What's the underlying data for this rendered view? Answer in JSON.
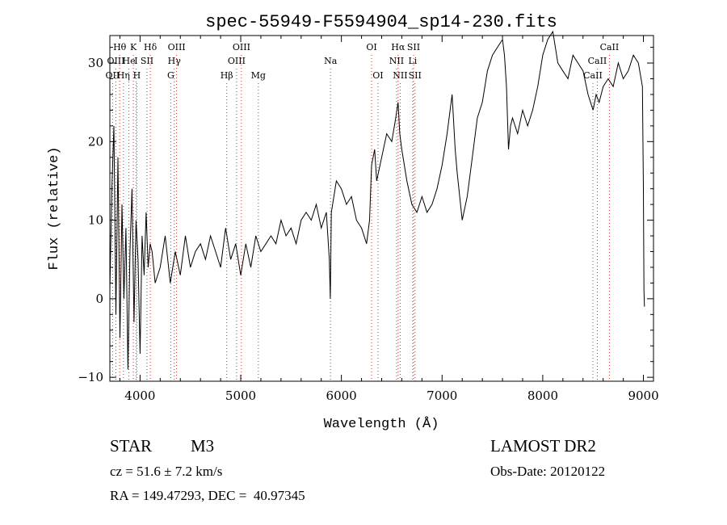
{
  "chart_data": {
    "type": "line",
    "title": "spec-55949-F5594904_sp14-230.fits",
    "xlabel": "Wavelength (Å)",
    "ylabel": "Flux (relative)",
    "xlim": [
      3700,
      9100
    ],
    "ylim": [
      -10.5,
      33.5
    ],
    "xticks": [
      4000,
      5000,
      6000,
      7000,
      8000,
      9000
    ],
    "yticks": [
      -10,
      0,
      10,
      20,
      30
    ],
    "grid": false,
    "legend": "none",
    "line_color": "#000000",
    "marker_line_color": "#c0392b",
    "series": [
      {
        "x": [
          3700,
          3720,
          3740,
          3760,
          3780,
          3800,
          3820,
          3840,
          3860,
          3880,
          3900,
          3920,
          3940,
          3960,
          3980,
          4000,
          4020,
          4040,
          4060,
          4080,
          4100,
          4120,
          4150,
          4200,
          4250,
          4300,
          4350,
          4400,
          4450,
          4500,
          4550,
          4600,
          4650,
          4700,
          4750,
          4800,
          4850,
          4900,
          4950,
          5000,
          5050,
          5100,
          5150,
          5200,
          5250,
          5300,
          5350,
          5400,
          5450,
          5500,
          5550,
          5600,
          5650,
          5700,
          5750,
          5800,
          5850,
          5880,
          5890,
          5900,
          5950,
          6000,
          6050,
          6100,
          6150,
          6200,
          6250,
          6280,
          6300,
          6330,
          6350,
          6400,
          6450,
          6500,
          6540,
          6563,
          6580,
          6600,
          6650,
          6700,
          6750,
          6800,
          6850,
          6900,
          6950,
          7000,
          7050,
          7080,
          7100,
          7130,
          7150,
          7200,
          7250,
          7300,
          7350,
          7400,
          7450,
          7500,
          7550,
          7600,
          7620,
          7640,
          7660,
          7680,
          7700,
          7750,
          7800,
          7850,
          7900,
          7950,
          8000,
          8050,
          8100,
          8150,
          8200,
          8250,
          8300,
          8350,
          8400,
          8450,
          8500,
          8530,
          8560,
          8600,
          8650,
          8700,
          8750,
          8800,
          8850,
          8900,
          8950,
          8990,
          9000,
          9005,
          9010
        ],
        "y": [
          1,
          14,
          22,
          -2,
          18,
          -5,
          12,
          0,
          9,
          -9,
          6,
          14,
          -3,
          10,
          5,
          -7,
          8,
          3,
          11,
          4,
          7,
          6,
          2,
          4,
          8,
          2,
          6,
          3,
          8,
          4,
          6,
          7,
          5,
          8,
          6,
          4,
          9,
          5,
          7,
          3,
          7,
          4,
          8,
          6,
          7,
          8,
          7,
          10,
          8,
          9,
          7,
          10,
          11,
          10,
          12,
          9,
          11,
          5,
          0,
          11,
          15,
          14,
          12,
          13,
          10,
          9,
          7,
          10,
          17,
          19,
          15,
          18,
          21,
          20,
          23,
          25,
          21,
          19,
          15,
          12,
          11,
          13,
          11,
          12,
          14,
          17,
          21,
          24,
          26,
          19,
          16,
          10,
          13,
          18,
          23,
          25,
          29,
          31,
          32,
          33,
          31,
          27,
          19,
          22,
          23,
          21,
          24,
          22,
          24,
          27,
          31,
          33,
          34,
          30,
          29,
          28,
          31,
          30,
          29,
          26,
          24,
          26,
          25,
          27,
          28,
          27,
          30,
          28,
          29,
          31,
          30,
          27,
          14,
          1,
          -1
        ]
      }
    ],
    "line_markers": [
      {
        "label": "Hθ",
        "x": 3798,
        "row": 1
      },
      {
        "label": "K",
        "x": 3934,
        "row": 1
      },
      {
        "label": "Hδ",
        "x": 4102,
        "row": 1
      },
      {
        "label": "OIII",
        "x": 4363,
        "row": 1
      },
      {
        "label": "OIII",
        "x": 5007,
        "row": 1
      },
      {
        "label": "OI",
        "x": 6300,
        "row": 1
      },
      {
        "label": "Hα",
        "x": 6563,
        "row": 1
      },
      {
        "label": "SII",
        "x": 6717,
        "row": 1
      },
      {
        "label": "CaII",
        "x": 8662,
        "row": 1
      },
      {
        "label": "OIII",
        "x": 3760,
        "row": 2
      },
      {
        "label": "He",
        "x": 3889,
        "row": 2
      },
      {
        "label": "I",
        "x": 3960,
        "row": 2
      },
      {
        "label": "SII",
        "x": 4069,
        "row": 2
      },
      {
        "label": "Hγ",
        "x": 4340,
        "row": 2
      },
      {
        "label": "OIII",
        "x": 4959,
        "row": 2
      },
      {
        "label": "Na",
        "x": 5892,
        "row": 2
      },
      {
        "label": "NII",
        "x": 6548,
        "row": 2
      },
      {
        "label": "Li",
        "x": 6708,
        "row": 2
      },
      {
        "label": "CaII",
        "x": 8542,
        "row": 2
      },
      {
        "label": "OII",
        "x": 3727,
        "row": 3
      },
      {
        "label": "Hη",
        "x": 3835,
        "row": 3
      },
      {
        "label": "H",
        "x": 3968,
        "row": 3
      },
      {
        "label": "G",
        "x": 4305,
        "row": 3
      },
      {
        "label": "Hβ",
        "x": 4861,
        "row": 3
      },
      {
        "label": "Mg",
        "x": 5175,
        "row": 3
      },
      {
        "label": "OI",
        "x": 6363,
        "row": 3
      },
      {
        "label": "NII",
        "x": 6584,
        "row": 3
      },
      {
        "label": "SII",
        "x": 6731,
        "row": 3
      },
      {
        "label": "CaII",
        "x": 8498,
        "row": 3
      }
    ]
  },
  "info": {
    "object_class": "STAR",
    "subclass": "M3",
    "redshift": "cz = 51.6 ± 7.2 km/s",
    "coords": "RA = 149.47293, DEC =  40.97345",
    "survey": "LAMOST DR2",
    "obs_date": "Obs-Date: 20120122"
  }
}
